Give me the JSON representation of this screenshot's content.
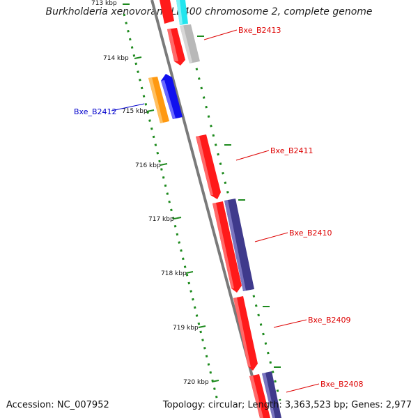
{
  "title": "Burkholderia xenovorans LB400 chromosome 2, complete genome",
  "footer": {
    "accession": "Accession: NC_007952",
    "stats": "Topology: circular; Length: 3,363,523 bp; Genes: 2,977"
  },
  "colors": {
    "forward_gene": "#ff1a1a",
    "reverse_gene": "#1010ee",
    "cds_blue": "#3f3a8c",
    "orange": "#ff9910",
    "cyan": "#22e5ee",
    "grey": "#b8b8b8",
    "tick": "#1d8a1d",
    "label_red": "#dd0000",
    "label_blue": "#0000cc"
  },
  "scale": {
    "unit": "kbp",
    "ticks": [
      "713 kbp",
      "714 kbp",
      "715 kbp",
      "716 kbp",
      "717 kbp",
      "718 kbp",
      "719 kbp",
      "720 kbp"
    ]
  },
  "gene_labels": [
    {
      "name": "Bxe_B2413",
      "side": "right",
      "color": "red"
    },
    {
      "name": "Bxe_B2412",
      "side": "left",
      "color": "blue"
    },
    {
      "name": "Bxe_B2411",
      "side": "right",
      "color": "red"
    },
    {
      "name": "Bxe_B2410",
      "side": "right",
      "color": "red"
    },
    {
      "name": "Bxe_B2409",
      "side": "right",
      "color": "red"
    },
    {
      "name": "Bxe_B2408",
      "side": "right",
      "color": "red"
    }
  ]
}
